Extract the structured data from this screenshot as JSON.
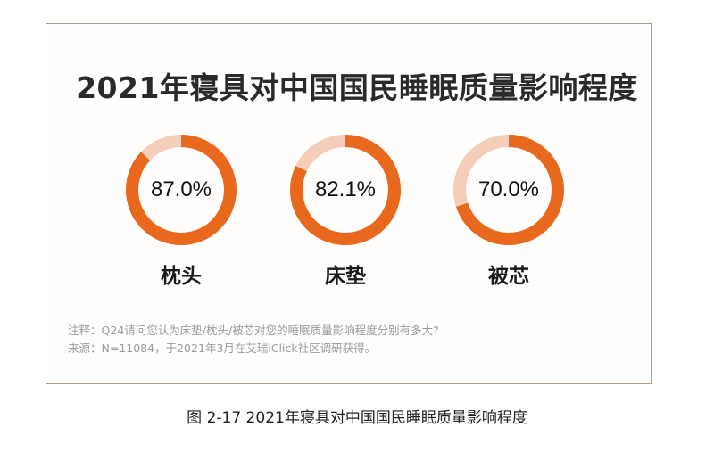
{
  "title": "2021年寝具对中国国民睡眠质量影响程度",
  "colors": {
    "primary": "#E8691E",
    "remainder": "#F5CDBB",
    "frame": "#B89A82"
  },
  "donuts": [
    {
      "label": "枕头",
      "value": 87.0,
      "display": "87.0%"
    },
    {
      "label": "床垫",
      "value": 82.1,
      "display": "82.1%"
    },
    {
      "label": "被芯",
      "value": 70.0,
      "display": "70.0%"
    }
  ],
  "notes": {
    "note": "注释：Q24请问您认为床垫/枕头/被芯对您的睡眠质量影响程度分别有多大?",
    "source": "来源：N=11084，于2021年3月在艾瑞iClick社区调研获得。"
  },
  "caption": "图 2-17    2021年寝具对中国国民睡眠质量影响程度",
  "chart_data": {
    "type": "pie",
    "subtype": "donut",
    "title": "2021年寝具对中国国民睡眠质量影响程度",
    "categories": [
      "枕头",
      "床垫",
      "被芯"
    ],
    "values": [
      87.0,
      82.1,
      70.0
    ],
    "unit": "%",
    "xlabel": "",
    "ylabel": "",
    "legend": "none",
    "note": "Q24请问您认为床垫/枕头/被芯对您的睡眠质量影响程度分别有多大?",
    "source": "N=11084，于2021年3月在艾瑞iClick社区调研获得。"
  }
}
